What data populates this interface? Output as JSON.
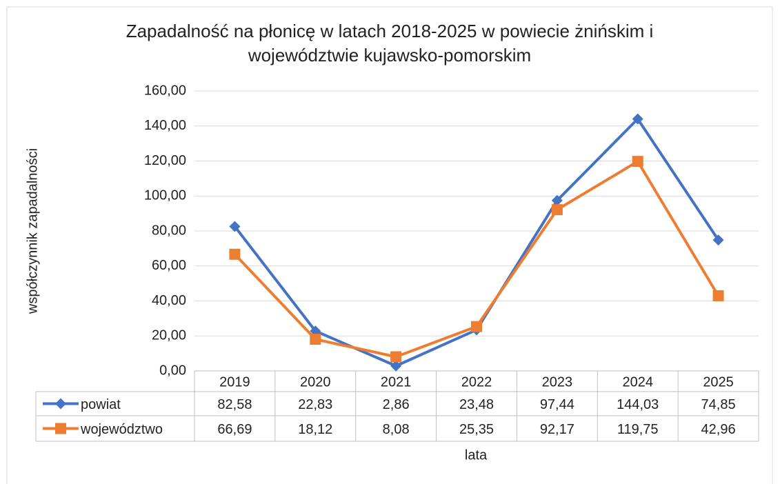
{
  "chart_data": {
    "type": "line",
    "title": [
      "Zapadalność na płonicę w latach 2018-2025 w powiecie żnińskim i",
      "województwie kujawsko-pomorskim"
    ],
    "xlabel": "lata",
    "ylabel": "współczynnik zapadalności",
    "categories": [
      "2019",
      "2020",
      "2021",
      "2022",
      "2023",
      "2024",
      "2025"
    ],
    "series": [
      {
        "name": "powiat",
        "color": "#4472c4",
        "marker": "diamond",
        "values": [
          82.58,
          22.83,
          2.86,
          23.48,
          97.44,
          144.03,
          74.85
        ],
        "value_labels": [
          "82,58",
          "22,83",
          "2,86",
          "23,48",
          "97,44",
          "144,03",
          "74,85"
        ]
      },
      {
        "name": "województwo",
        "color": "#ed7d31",
        "marker": "square",
        "values": [
          66.69,
          18.12,
          8.08,
          25.35,
          92.17,
          119.75,
          42.96
        ],
        "value_labels": [
          "66,69",
          "18,12",
          "8,08",
          "25,35",
          "92,17",
          "119,75",
          "42,96"
        ]
      }
    ],
    "ylim": [
      0,
      160
    ],
    "yticks": [
      {
        "value": 0,
        "label": "0,00"
      },
      {
        "value": 20,
        "label": "20,00"
      },
      {
        "value": 40,
        "label": "40,00"
      },
      {
        "value": 60,
        "label": "60,00"
      },
      {
        "value": 80,
        "label": "80,00"
      },
      {
        "value": 100,
        "label": "100,00"
      },
      {
        "value": 120,
        "label": "120,00"
      },
      {
        "value": 140,
        "label": "140,00"
      },
      {
        "value": 160,
        "label": "160,00"
      }
    ],
    "grid": true
  }
}
